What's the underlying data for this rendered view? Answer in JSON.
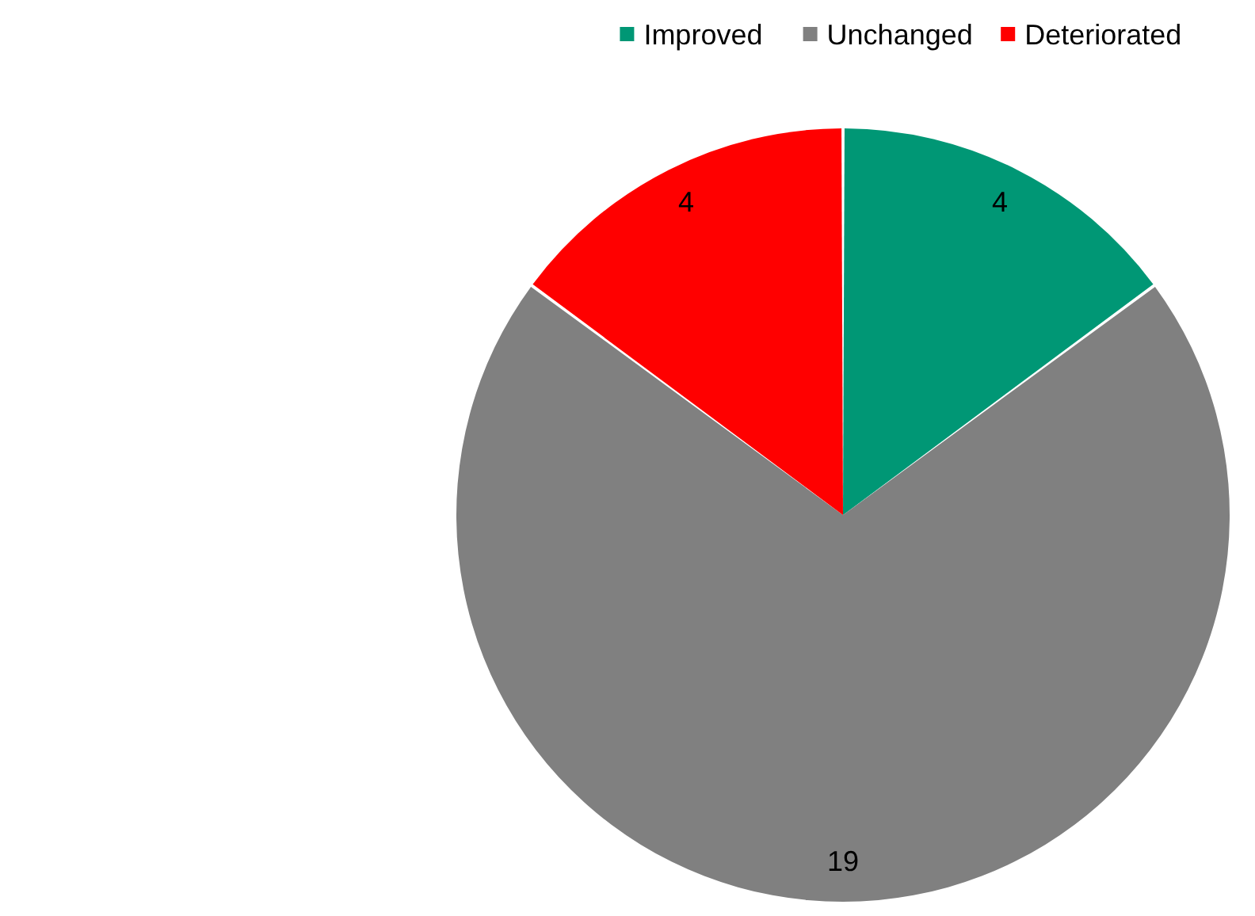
{
  "chart_data": {
    "type": "pie",
    "categories": [
      "Improved",
      "Unchanged",
      "Deteriorated"
    ],
    "values": [
      4,
      19,
      4
    ],
    "colors": [
      "#009775",
      "#808080",
      "#ff0000"
    ],
    "data_labels": true,
    "legend": "top right"
  }
}
